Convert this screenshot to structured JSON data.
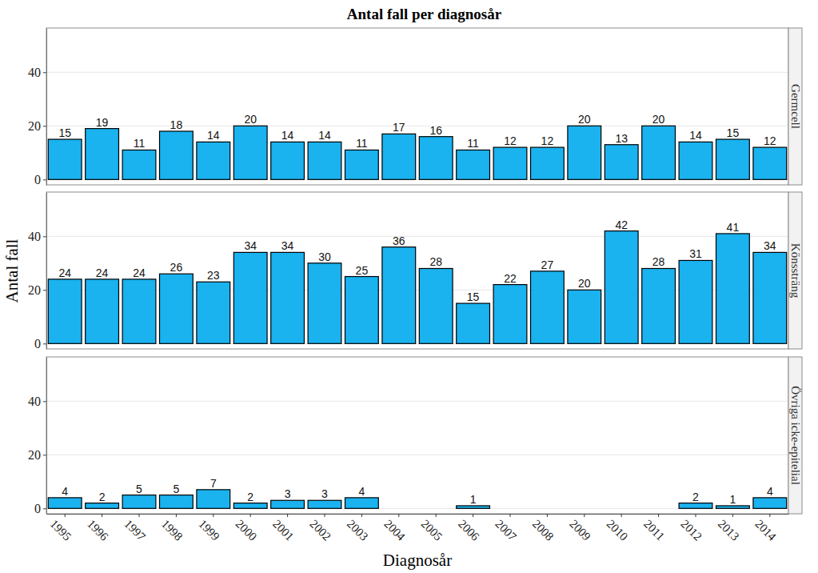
{
  "chart_data": {
    "type": "bar",
    "title": "Antal fall per diagnosår",
    "x_label": "Diagnosår",
    "y_label": "Antal fall",
    "categories": [
      "1995",
      "1996",
      "1997",
      "1998",
      "1999",
      "2000",
      "2001",
      "2002",
      "2003",
      "2004",
      "2005",
      "2006",
      "2007",
      "2008",
      "2009",
      "2010",
      "2011",
      "2012",
      "2013",
      "2014"
    ],
    "series": [
      {
        "name": "Germcell",
        "values": [
          15,
          19,
          11,
          18,
          14,
          20,
          14,
          14,
          11,
          17,
          16,
          11,
          12,
          12,
          20,
          13,
          20,
          14,
          15,
          12
        ]
      },
      {
        "name": "Könssträng",
        "values": [
          24,
          24,
          24,
          26,
          23,
          34,
          34,
          30,
          25,
          36,
          28,
          15,
          22,
          27,
          20,
          42,
          28,
          31,
          41,
          34
        ]
      },
      {
        "name": "Övriga icke-epitelial",
        "values": [
          4,
          2,
          5,
          5,
          7,
          2,
          3,
          3,
          4,
          null,
          null,
          1,
          null,
          null,
          null,
          null,
          null,
          2,
          1,
          4
        ]
      }
    ],
    "color": "#1ab2ef",
    "ylim": [
      -2,
      56.5
    ],
    "yticks": [
      0,
      20,
      40
    ],
    "grid": true,
    "data_labels": true
  }
}
